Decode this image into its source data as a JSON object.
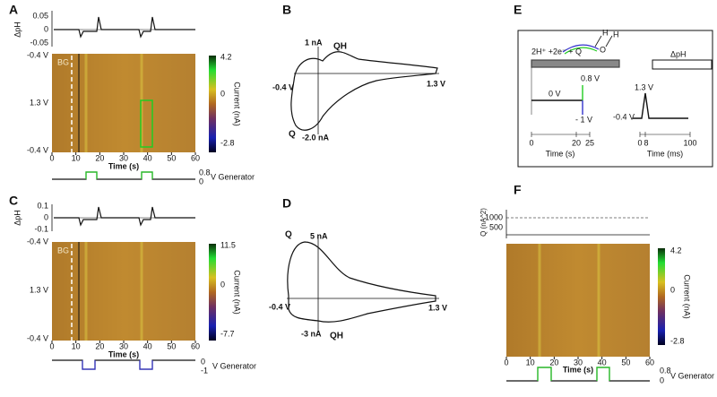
{
  "A": {
    "label": "A",
    "dph_axis": "ΔpH",
    "dph_ticks": [
      "0.05",
      "0",
      "-0.05"
    ],
    "voltage_ticks": [
      "-0.4 V",
      "1.3 V",
      "-0.4 V"
    ],
    "bg": "BG",
    "time_ticks": [
      "0",
      "10",
      "20",
      "30",
      "40",
      "50",
      "60"
    ],
    "time_label": "Time (s)",
    "colorbar_ticks": [
      "4.2",
      "0",
      "-2.8"
    ],
    "colorbar_label": "Current (nA)",
    "generator_ticks": [
      "0.8",
      "0"
    ],
    "generator_label": "V Generator"
  },
  "B": {
    "label": "B",
    "top_current": "1 nA",
    "qh": "QH",
    "left_voltage": "-0.4 V",
    "right_voltage": "1.3 V",
    "q": "Q",
    "bottom_current": "-2.0 nA"
  },
  "C": {
    "label": "C",
    "dph_axis": "ΔpH",
    "dph_ticks": [
      "0.1",
      "0",
      "-0.1"
    ],
    "voltage_ticks": [
      "-0.4 V",
      "1.3 V",
      "-0.4 V"
    ],
    "bg": "BG",
    "time_ticks": [
      "0",
      "10",
      "20",
      "30",
      "40",
      "50",
      "60"
    ],
    "time_label": "Time (s)",
    "colorbar_ticks": [
      "11.5",
      "0",
      "-7.7"
    ],
    "colorbar_label": "Current (nA)",
    "generator_ticks": [
      "0",
      "-1"
    ],
    "generator_label": "V Generator"
  },
  "D": {
    "label": "D",
    "q": "Q",
    "top_current": "5 nA",
    "left_voltage": "-0.4 V",
    "right_voltage": "1.3 V",
    "bottom_current": "-3 nA",
    "qh": "QH"
  },
  "E": {
    "label": "E",
    "reaction": "2H⁺ +2e⁻ + Q",
    "h1": "H",
    "h2": "H",
    "o": "O",
    "dph": "ΔpH",
    "gen_high": "0.8 V",
    "gen_zero": "0 V",
    "gen_low": "- 1 V",
    "cv_high": "1.3 V",
    "cv_low": "-0.4 V",
    "left_ticks": [
      "0",
      "20",
      "25"
    ],
    "left_axis": "Time (s)",
    "right_ticks": [
      "0",
      "8",
      "100"
    ],
    "right_axis": "Time (ms)"
  },
  "F": {
    "label": "F",
    "q_axis": "Q (nA^2)",
    "q_ticks": [
      "1000",
      "500"
    ],
    "time_ticks": [
      "0",
      "10",
      "20",
      "30",
      "40",
      "50",
      "60"
    ],
    "time_label": "Time (s)",
    "colorbar_ticks": [
      "4.2",
      "0",
      "-2.8"
    ],
    "colorbar_label": "Current (nA)",
    "generator_ticks": [
      "0.8",
      "0"
    ],
    "generator_label": "V Generator"
  }
}
